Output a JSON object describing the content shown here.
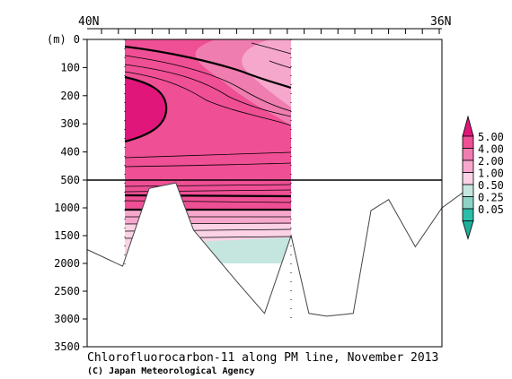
{
  "chart_data": {
    "type": "contour-section",
    "title": "Chlorofluorocarbon-11 along PM line, November 2013",
    "credit": "(C) Japan Meteorological Agency",
    "x_axis": {
      "top_labels": [
        "40N",
        "36N"
      ],
      "range": [
        40,
        36
      ]
    },
    "y_axis": {
      "unit_label": "(m)",
      "upper_panel": {
        "range": [
          0,
          500
        ],
        "ticks": [
          "0",
          "100",
          "200",
          "300",
          "400",
          "500"
        ]
      },
      "lower_panel": {
        "range": [
          500,
          3500
        ],
        "ticks": [
          "1000",
          "1500",
          "2000",
          "2500",
          "3000",
          "3500"
        ]
      }
    },
    "colorbar": {
      "levels": [
        "5.00",
        "4.00",
        "2.00",
        "1.00",
        "0.50",
        "0.25",
        "0.05"
      ],
      "colors": [
        "#ef4f95",
        "#f07db0",
        "#f6a7cc",
        "#fbd2e6",
        "#c5e6de",
        "#8dd3c6",
        "#2bbda9"
      ],
      "top_color": "#e0167a",
      "bottom_color": "#1fae9a"
    },
    "data_region": {
      "lat_range": [
        39.6,
        37.7
      ]
    },
    "bottom_topography_m": [
      {
        "lat": 40.0,
        "depth": 1750
      },
      {
        "lat": 39.6,
        "depth": 2050
      },
      {
        "lat": 39.3,
        "depth": 650
      },
      {
        "lat": 39.0,
        "depth": 550
      },
      {
        "lat": 38.8,
        "depth": 1400
      },
      {
        "lat": 38.3,
        "depth": 2350
      },
      {
        "lat": 38.0,
        "depth": 2900
      },
      {
        "lat": 37.7,
        "depth": 1500
      },
      {
        "lat": 37.5,
        "depth": 2900
      },
      {
        "lat": 37.3,
        "depth": 2950
      },
      {
        "lat": 37.0,
        "depth": 2900
      },
      {
        "lat": 36.8,
        "depth": 1050
      },
      {
        "lat": 36.6,
        "depth": 850
      },
      {
        "lat": 36.3,
        "depth": 1700
      },
      {
        "lat": 36.0,
        "depth": 1000
      },
      {
        "lat": 35.7,
        "depth": 650
      }
    ]
  }
}
